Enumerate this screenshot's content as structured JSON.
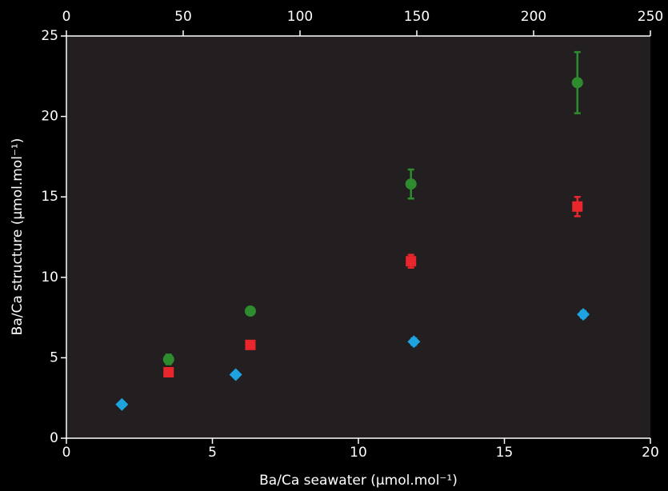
{
  "chart_data": {
    "type": "scatter",
    "x_label": "Ba/Ca seawater (µmol.mol⁻¹)",
    "y_label": "Ba/Ca structure (µmol.mol⁻¹)",
    "xlim": [
      0,
      20
    ],
    "xticks": [
      0,
      5,
      10,
      15,
      20
    ],
    "x2lim": [
      0,
      250
    ],
    "x2ticks": [
      0,
      50,
      100,
      150,
      200,
      250
    ],
    "ylim": [
      0,
      25
    ],
    "yticks": [
      0,
      5,
      10,
      15,
      20,
      25
    ],
    "grid": false,
    "series": [
      {
        "color": "#2e8b2e",
        "marker": "circle",
        "x": [
          3.5,
          6.3,
          11.8,
          17.5
        ],
        "values": [
          4.9,
          7.9,
          15.8,
          22.1
        ],
        "errors": [
          0.3,
          0.2,
          0.9,
          1.9
        ]
      },
      {
        "color": "#e8262b",
        "marker": "square",
        "x": [
          3.5,
          6.3,
          11.8,
          17.5
        ],
        "values": [
          4.1,
          5.8,
          11.0,
          14.4
        ],
        "errors": [
          0.1,
          0.1,
          0.4,
          0.6
        ]
      },
      {
        "color": "#1ea3e0",
        "marker": "diamond",
        "x": [
          1.9,
          5.8,
          11.9,
          17.7
        ],
        "values": [
          2.1,
          3.95,
          6.0,
          7.7
        ],
        "errors": [
          0.1,
          0.1,
          0.2,
          0.2
        ]
      }
    ]
  }
}
